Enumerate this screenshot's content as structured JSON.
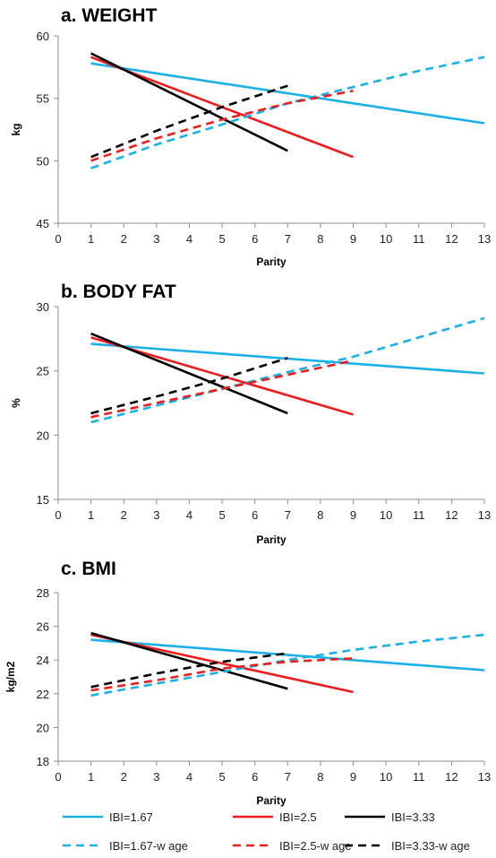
{
  "chart_data": [
    {
      "type": "line",
      "title": "a. WEIGHT",
      "xlabel": "Parity",
      "ylabel": "kg",
      "xlim": [
        0,
        13
      ],
      "ylim": [
        45,
        60
      ],
      "xticks": [
        "0",
        "1",
        "2",
        "3",
        "4",
        "5",
        "6",
        "7",
        "8",
        "9",
        "10",
        "11",
        "12",
        "13"
      ],
      "yticks": [
        "45",
        "50",
        "55",
        "60"
      ],
      "grid": false,
      "series": [
        {
          "name": "IBI=1.67",
          "color": "#1ab0e8",
          "dashed": false,
          "x": [
            1,
            13
          ],
          "y": [
            57.8,
            53.0
          ]
        },
        {
          "name": "IBI=2.5",
          "color": "#ee1c1c",
          "dashed": false,
          "x": [
            1,
            9
          ],
          "y": [
            58.3,
            50.3
          ]
        },
        {
          "name": "IBI=3.33",
          "color": "#000000",
          "dashed": false,
          "x": [
            1,
            7
          ],
          "y": [
            58.6,
            50.8
          ]
        },
        {
          "name": "IBI=1.67-w age",
          "color": "#1ab0e8",
          "dashed": true,
          "x": [
            1,
            3,
            5,
            7,
            9,
            11,
            13
          ],
          "y": [
            49.4,
            51.3,
            52.9,
            54.6,
            55.9,
            57.2,
            58.3
          ]
        },
        {
          "name": "IBI=2.5-w age",
          "color": "#ee1c1c",
          "dashed": true,
          "x": [
            1,
            3,
            5,
            7,
            9
          ],
          "y": [
            50.0,
            51.8,
            53.3,
            54.6,
            55.6
          ]
        },
        {
          "name": "IBI=3.33-w age",
          "color": "#000000",
          "dashed": true,
          "x": [
            1,
            3,
            5,
            7
          ],
          "y": [
            50.3,
            52.4,
            54.3,
            56.0
          ]
        }
      ]
    },
    {
      "type": "line",
      "title": "b. BODY FAT",
      "xlabel": "Parity",
      "ylabel": "%",
      "xlim": [
        0,
        13
      ],
      "ylim": [
        15,
        30
      ],
      "xticks": [
        "0",
        "1",
        "2",
        "3",
        "4",
        "5",
        "6",
        "7",
        "8",
        "9",
        "10",
        "11",
        "12",
        "13"
      ],
      "yticks": [
        "15",
        "20",
        "25",
        "30"
      ],
      "grid": false,
      "series": [
        {
          "name": "IBI=1.67",
          "color": "#1ab0e8",
          "dashed": false,
          "x": [
            1,
            13
          ],
          "y": [
            27.1,
            24.8
          ]
        },
        {
          "name": "IBI=2.5",
          "color": "#ee1c1c",
          "dashed": false,
          "x": [
            1,
            9
          ],
          "y": [
            27.6,
            21.6
          ]
        },
        {
          "name": "IBI=3.33",
          "color": "#000000",
          "dashed": false,
          "x": [
            1,
            7
          ],
          "y": [
            27.9,
            21.7
          ]
        },
        {
          "name": "IBI=1.67-w age",
          "color": "#1ab0e8",
          "dashed": true,
          "x": [
            1,
            3,
            5,
            7,
            9,
            11,
            13
          ],
          "y": [
            21.0,
            22.3,
            23.6,
            24.9,
            26.1,
            27.6,
            29.1
          ]
        },
        {
          "name": "IBI=2.5-w age",
          "color": "#ee1c1c",
          "dashed": true,
          "x": [
            1,
            3,
            5,
            7,
            9
          ],
          "y": [
            21.4,
            22.5,
            23.6,
            24.7,
            25.8
          ]
        },
        {
          "name": "IBI=3.33-w age",
          "color": "#000000",
          "dashed": true,
          "x": [
            1,
            3,
            5,
            7
          ],
          "y": [
            21.7,
            23.0,
            24.4,
            26.0
          ]
        }
      ]
    },
    {
      "type": "line",
      "title": "c. BMI",
      "xlabel": "Parity",
      "ylabel": "kg/m2",
      "xlim": [
        0,
        13
      ],
      "ylim": [
        18,
        28
      ],
      "xticks": [
        "0",
        "1",
        "2",
        "3",
        "4",
        "5",
        "6",
        "7",
        "8",
        "9",
        "10",
        "11",
        "12",
        "13"
      ],
      "yticks": [
        "18",
        "20",
        "22",
        "24",
        "26",
        "28"
      ],
      "grid": false,
      "series": [
        {
          "name": "IBI=1.67",
          "color": "#1ab0e8",
          "dashed": false,
          "x": [
            1,
            13
          ],
          "y": [
            25.2,
            23.4
          ]
        },
        {
          "name": "IBI=2.5",
          "color": "#ee1c1c",
          "dashed": false,
          "x": [
            1,
            9
          ],
          "y": [
            25.5,
            22.1
          ]
        },
        {
          "name": "IBI=3.33",
          "color": "#000000",
          "dashed": false,
          "x": [
            1,
            7
          ],
          "y": [
            25.6,
            22.3
          ]
        },
        {
          "name": "IBI=1.67-w age",
          "color": "#1ab0e8",
          "dashed": true,
          "x": [
            1,
            3,
            5,
            7,
            9,
            11,
            13
          ],
          "y": [
            21.9,
            22.6,
            23.3,
            24.0,
            24.6,
            25.1,
            25.5
          ]
        },
        {
          "name": "IBI=2.5-w age",
          "color": "#ee1c1c",
          "dashed": true,
          "x": [
            1,
            3,
            5,
            7,
            9
          ],
          "y": [
            22.2,
            22.8,
            23.5,
            23.9,
            24.1
          ]
        },
        {
          "name": "IBI=3.33-w age",
          "color": "#000000",
          "dashed": true,
          "x": [
            1,
            3,
            5,
            7
          ],
          "y": [
            22.4,
            23.2,
            23.9,
            24.4
          ]
        }
      ]
    }
  ],
  "legend": {
    "placement": "bottom",
    "entries": [
      {
        "label": "IBI=1.67",
        "color": "#1ab0e8",
        "dashed": false
      },
      {
        "label": "IBI=2.5",
        "color": "#ee1c1c",
        "dashed": false
      },
      {
        "label": "IBI=3.33",
        "color": "#000000",
        "dashed": false
      },
      {
        "label": "IBI=1.67-w age",
        "color": "#1ab0e8",
        "dashed": true
      },
      {
        "label": "IBI=2.5-w age",
        "color": "#ee1c1c",
        "dashed": true
      },
      {
        "label": "IBI=3.33-w age",
        "color": "#000000",
        "dashed": true
      }
    ]
  }
}
